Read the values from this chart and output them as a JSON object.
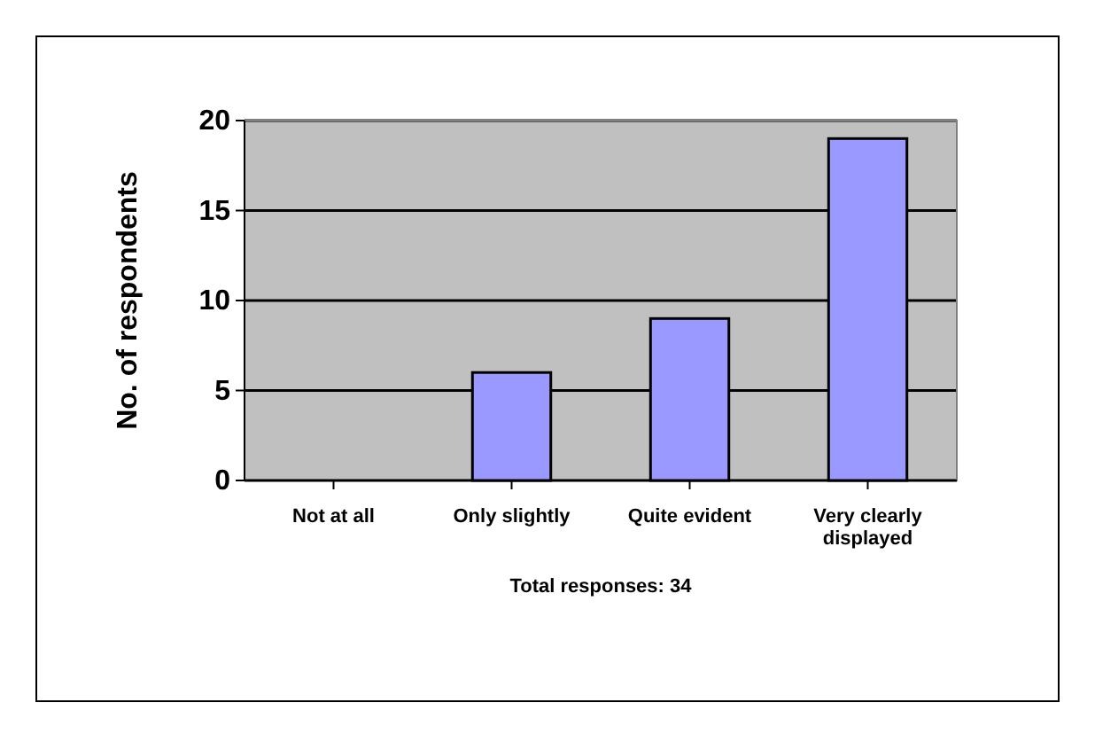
{
  "chart_data": {
    "type": "bar",
    "categories": [
      "Not at all",
      "Only slightly",
      "Quite evident",
      "Very clearly displayed"
    ],
    "values": [
      0,
      6,
      9,
      19
    ],
    "color": "#9999ff",
    "ylabel": "No. of respondents",
    "xlabel": "Total responses: 34",
    "ylim": [
      0,
      20
    ],
    "yticks": [
      0,
      5,
      10,
      15,
      20
    ],
    "grid": "y"
  }
}
